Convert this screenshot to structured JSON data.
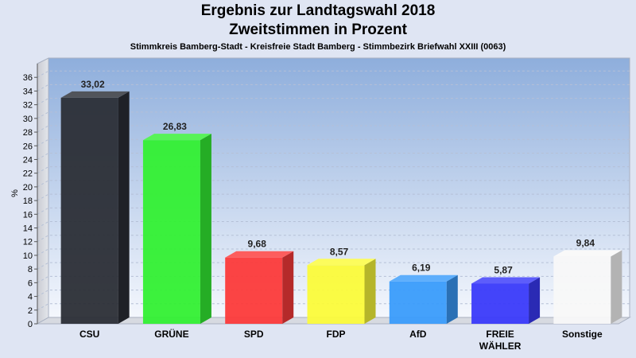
{
  "header": {
    "title_line1": "Ergebnis zur Landtagswahl 2018",
    "title_line2": "Zweitstimmen in Prozent",
    "subtitle": "Stimmkreis Bamberg-Stadt - Kreisfreie Stadt Bamberg - Stimmbezirk Briefwahl XXIII (0063)"
  },
  "chart_data": {
    "type": "bar",
    "title": "Ergebnis zur Landtagswahl 2018 Zweitstimmen in Prozent",
    "subtitle": "Stimmkreis Bamberg-Stadt - Kreisfreie Stadt Bamberg - Stimmbezirk Briefwahl XXIII (0063)",
    "ylabel": "%",
    "ylim": [
      0,
      38
    ],
    "yticks": [
      0,
      2,
      4,
      6,
      8,
      10,
      12,
      14,
      16,
      18,
      20,
      22,
      24,
      26,
      28,
      30,
      32,
      34,
      36
    ],
    "grid": true,
    "categories": [
      "CSU",
      "GRÜNE",
      "SPD",
      "FDP",
      "AfD",
      "FREIE WÄHLER",
      "Sonstige"
    ],
    "category_lines": [
      [
        "CSU"
      ],
      [
        "GRÜNE"
      ],
      [
        "SPD"
      ],
      [
        "FDP"
      ],
      [
        "AfD"
      ],
      [
        "FREIE",
        "WÄHLER"
      ],
      [
        "Sonstige"
      ]
    ],
    "values": [
      33.02,
      26.83,
      9.68,
      8.57,
      6.19,
      5.87,
      9.84
    ],
    "value_labels": [
      "33,02",
      "26,83",
      "9,68",
      "8,57",
      "6,19",
      "5,87",
      "9,84"
    ],
    "colors": [
      "#2b2e36",
      "#33f033",
      "#fc3a3a",
      "#fbfb3a",
      "#3a9cfb",
      "#3a3afa",
      "#f8f8f8"
    ]
  }
}
